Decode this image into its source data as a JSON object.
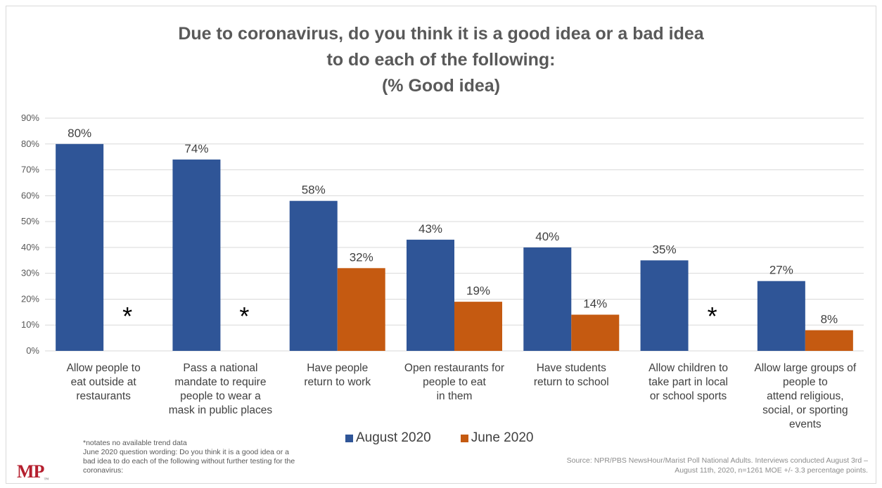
{
  "chart_data": {
    "type": "bar",
    "title_lines": [
      "Due to coronavirus, do you think it is a good idea or a bad idea",
      "to do each of the following:",
      "(% Good idea)"
    ],
    "categories": [
      [
        "Allow people to",
        "eat outside at",
        "restaurants"
      ],
      [
        "Pass a national",
        "mandate to require",
        "people to wear a",
        "mask in public places"
      ],
      [
        "Have people",
        "return to work"
      ],
      [
        "Open restaurants for",
        "people to eat",
        "in them"
      ],
      [
        "Have students",
        "return to school"
      ],
      [
        "Allow children to",
        "take part in local",
        "or school sports"
      ],
      [
        "Allow large groups of",
        "people to",
        "attend religious,",
        "social, or sporting",
        "events"
      ]
    ],
    "series": [
      {
        "name": "August 2020",
        "color": "#2f5597",
        "values": [
          80,
          74,
          58,
          43,
          40,
          35,
          27
        ],
        "labels": [
          "80%",
          "74%",
          "58%",
          "43%",
          "40%",
          "35%",
          "27%"
        ]
      },
      {
        "name": "June 2020",
        "color": "#c55a11",
        "values": [
          null,
          null,
          32,
          19,
          14,
          null,
          8
        ],
        "labels": [
          "*",
          "*",
          "32%",
          "19%",
          "14%",
          "*",
          "8%"
        ]
      }
    ],
    "ylim": [
      0,
      90
    ],
    "yticks": [
      "0%",
      "10%",
      "20%",
      "30%",
      "40%",
      "50%",
      "60%",
      "70%",
      "80%",
      "90%"
    ],
    "grid": true,
    "legend_position": "bottom"
  },
  "notes": [
    "*notates no available trend data",
    "June 2020 question wording: Do you think it is a good idea or a bad idea to do each of the following without further testing for the coronavirus:"
  ],
  "source": "Source: NPR/PBS NewsHour/Marist Poll National Adults. Interviews conducted August 3rd – August 11th, 2020, n=1261 MOE +/- 3.3 percentage points.",
  "logo_text": "MP",
  "logo_mark": "™"
}
